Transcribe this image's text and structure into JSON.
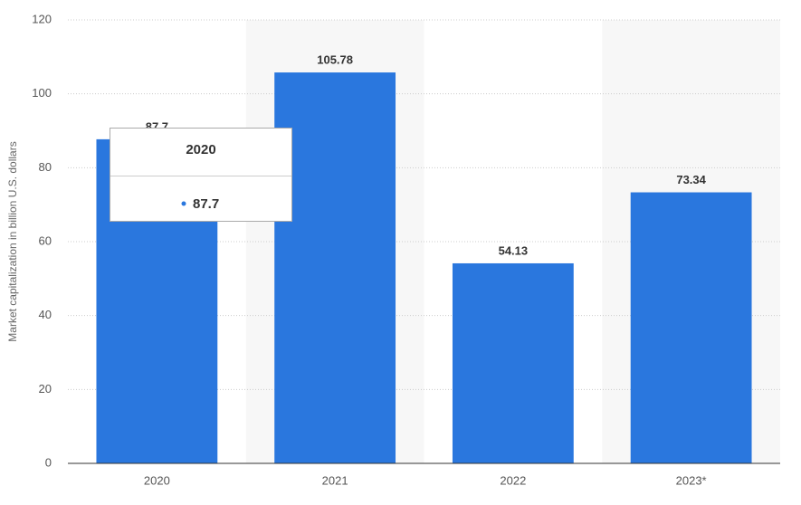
{
  "chart_data": {
    "type": "bar",
    "y_axis_label": "Market capitalization in billion U.S. dollars",
    "categories": [
      "2020",
      "2021",
      "2022",
      "2023*"
    ],
    "values": [
      87.7,
      105.78,
      54.13,
      73.34
    ],
    "color": "#2a77de",
    "ylim": [
      0,
      120
    ],
    "yticks": [
      0,
      20,
      40,
      60,
      80,
      100,
      120
    ],
    "grid": true,
    "shaded_bands": [
      1,
      3
    ],
    "tooltip_index": 0
  }
}
